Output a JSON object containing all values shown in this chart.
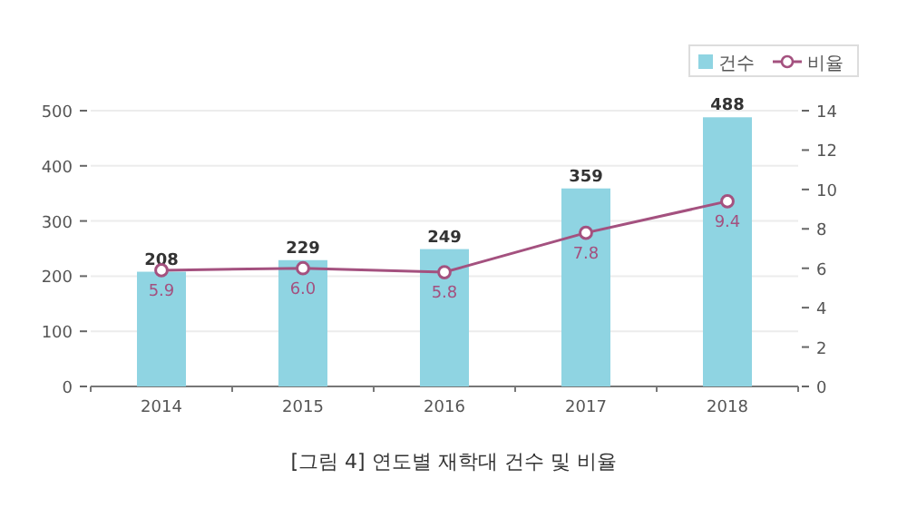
{
  "chart_data": {
    "type": "bar",
    "categories": [
      "2014",
      "2015",
      "2016",
      "2017",
      "2018"
    ],
    "series": [
      {
        "name": "건수",
        "color": "#8fd4e2",
        "values": [
          208,
          229,
          249,
          359,
          488
        ]
      },
      {
        "name": "비율",
        "type": "line",
        "axis": "y2",
        "color": "#a4517f",
        "marker": "circle",
        "values": [
          5.9,
          6.0,
          5.8,
          7.8,
          9.4
        ],
        "value_labels": [
          "5.9",
          "6.0",
          "5.8",
          "7.8",
          "9.4"
        ]
      }
    ],
    "ylim": [
      0,
      500
    ],
    "yticks": [
      0,
      100,
      200,
      300,
      400,
      500
    ],
    "y2lim": [
      0,
      14
    ],
    "y2ticks": [
      0,
      2,
      4,
      6,
      8,
      10,
      12,
      14
    ],
    "grid": "y",
    "legend": "top right",
    "data_labels": true,
    "annotations": [
      "[그림 4] 연도별 재학대 건수 및 비율"
    ]
  }
}
